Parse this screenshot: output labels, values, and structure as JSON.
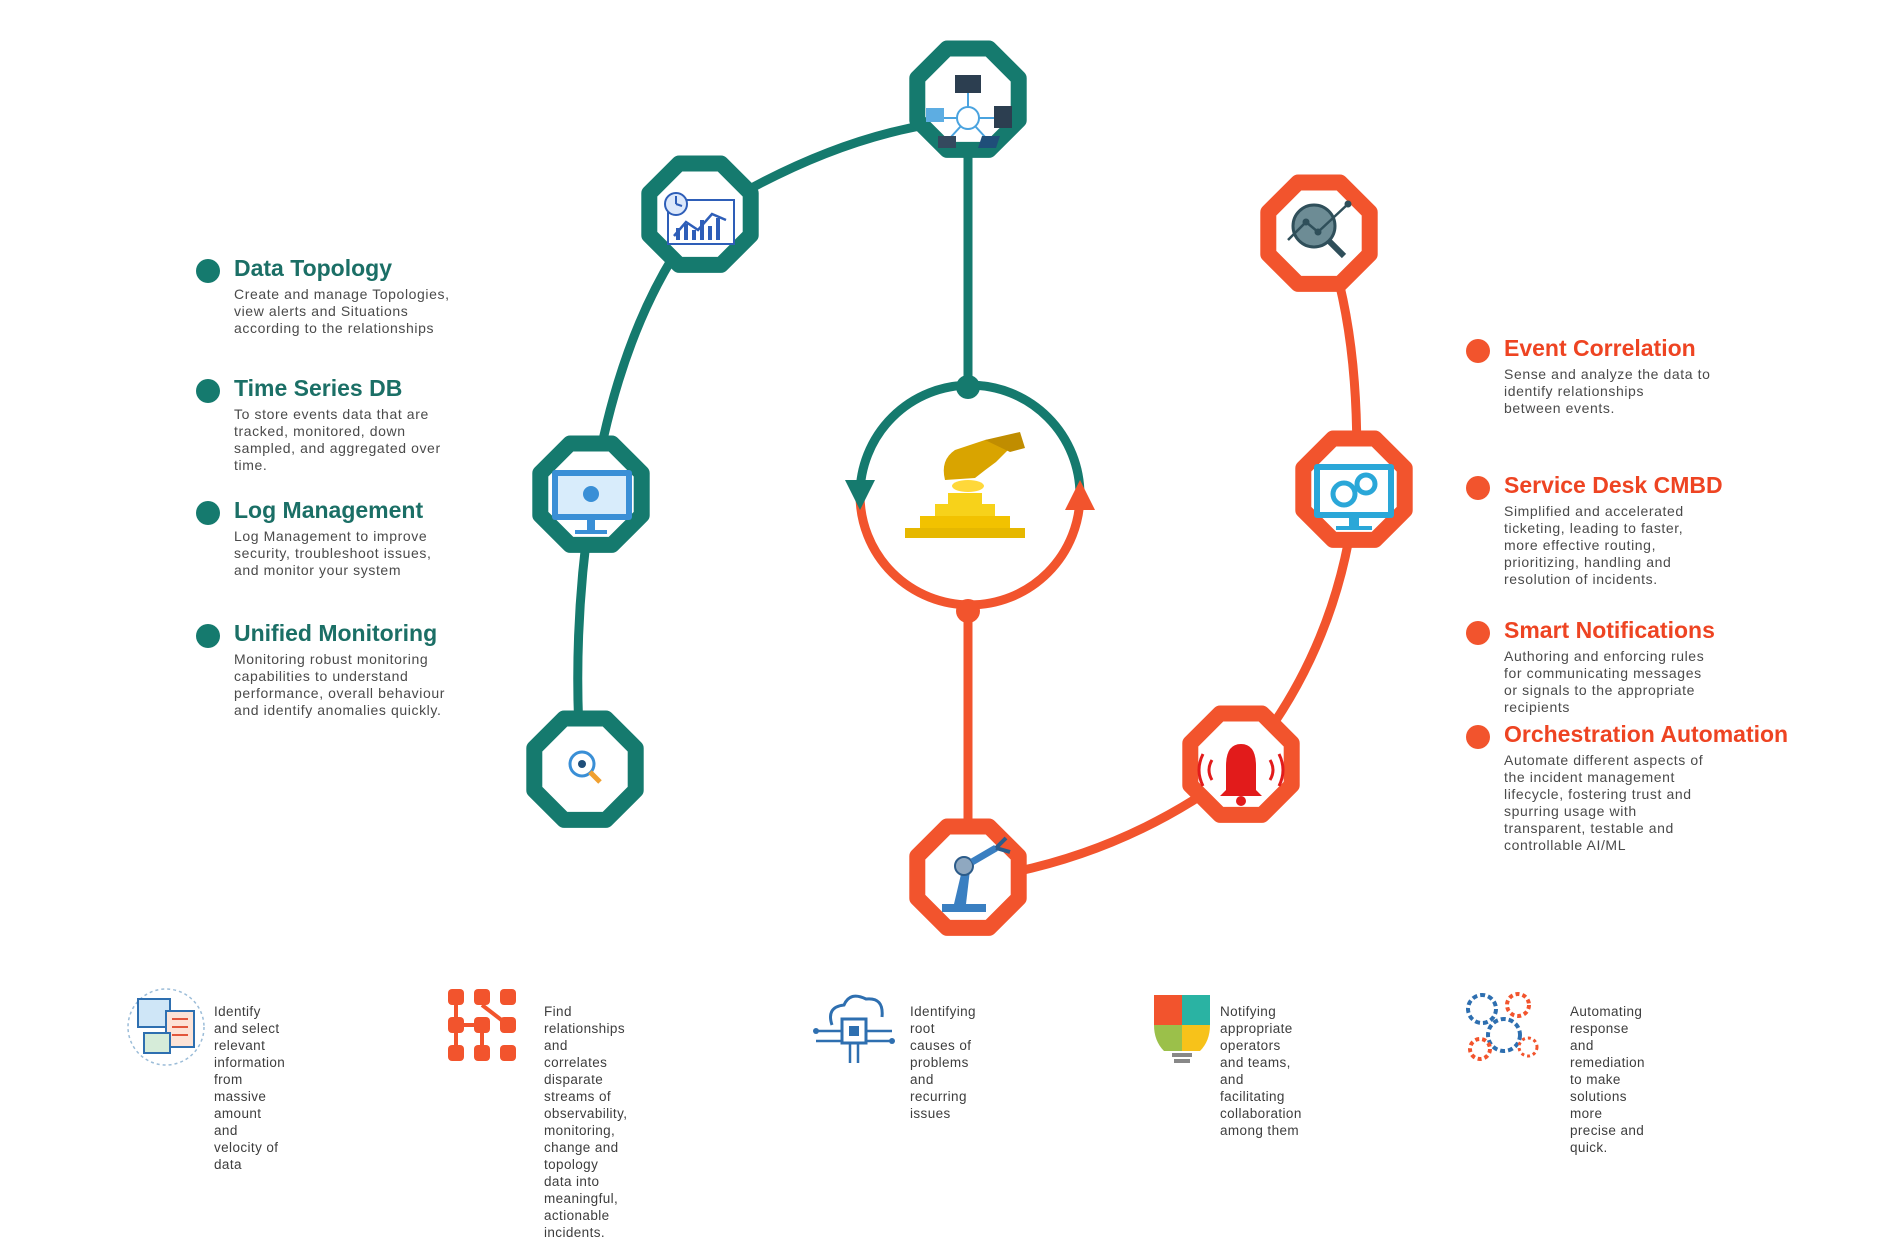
{
  "left_features": [
    {
      "title": "Data Topology",
      "description": "Create and manage Topologies,\nview alerts and Situations\naccording to the relationships"
    },
    {
      "title": "Time Series DB",
      "description": "To store events data that are\ntracked, monitored, down\nsampled, and aggregated over\ntime."
    },
    {
      "title": "Log Management",
      "description": "Log Management to improve\nsecurity, troubleshoot issues,\nand monitor your system"
    },
    {
      "title": "Unified Monitoring",
      "description": "Monitoring robust monitoring\ncapabilities to understand\nperformance, overall behaviour\nand identify anomalies quickly."
    }
  ],
  "right_features": [
    {
      "title": "Event Correlation",
      "description": "Sense and analyze the data to\nidentify relationships\nbetween events."
    },
    {
      "title": "Service Desk CMBD",
      "description": "Simplified and accelerated\nticketing, leading to faster,\nmore effective routing,\nprioritizing, handling and\nresolution of incidents."
    },
    {
      "title": "Smart Notifications",
      "description": "Authoring and enforcing rules\nfor communicating messages\nor signals to the appropriate\nrecipients"
    },
    {
      "title": "Orchestration Automation",
      "description": "Automate different aspects of\nthe incident management\nlifecycle, fostering trust and\nspurring usage with\ntransparent, testable and\ncontrollable AI/ML"
    }
  ],
  "bottom_items": [
    {
      "icon": "data-selection-icon",
      "text": "Identify and select relevant\ninformation from massive\namount and velocity of data"
    },
    {
      "icon": "correlation-grid-icon",
      "text": "Find relationships and correlates\ndisparate streams of observability,\nmonitoring, change and topology\ndata into meaningful, actionable\nincidents."
    },
    {
      "icon": "circuit-cloud-icon",
      "text": "Identifying root causes of\nproblems and recurring issues"
    },
    {
      "icon": "puzzle-bulb-icon",
      "text": "Notifying appropriate operators\nand teams, and facilitating\ncollaboration among them"
    },
    {
      "icon": "automation-gears-icon",
      "text": "Automating response and\nremediation to make solutions\nmore precise and quick."
    }
  ],
  "diagram": {
    "green_nodes": [
      "network-topology-icon",
      "chart-timeseries-icon",
      "monitor-log-icon",
      "magnifier-eye-icon"
    ],
    "orange_nodes": [
      "search-analytics-icon",
      "desktop-gears-icon",
      "alarm-bell-icon",
      "robot-arm-icon"
    ],
    "center": "hand-coins-icon"
  },
  "colors": {
    "green": "#157a6e",
    "orange": "#f2542d",
    "title_green": "#1b6f66",
    "title_orange": "#ee4422"
  }
}
